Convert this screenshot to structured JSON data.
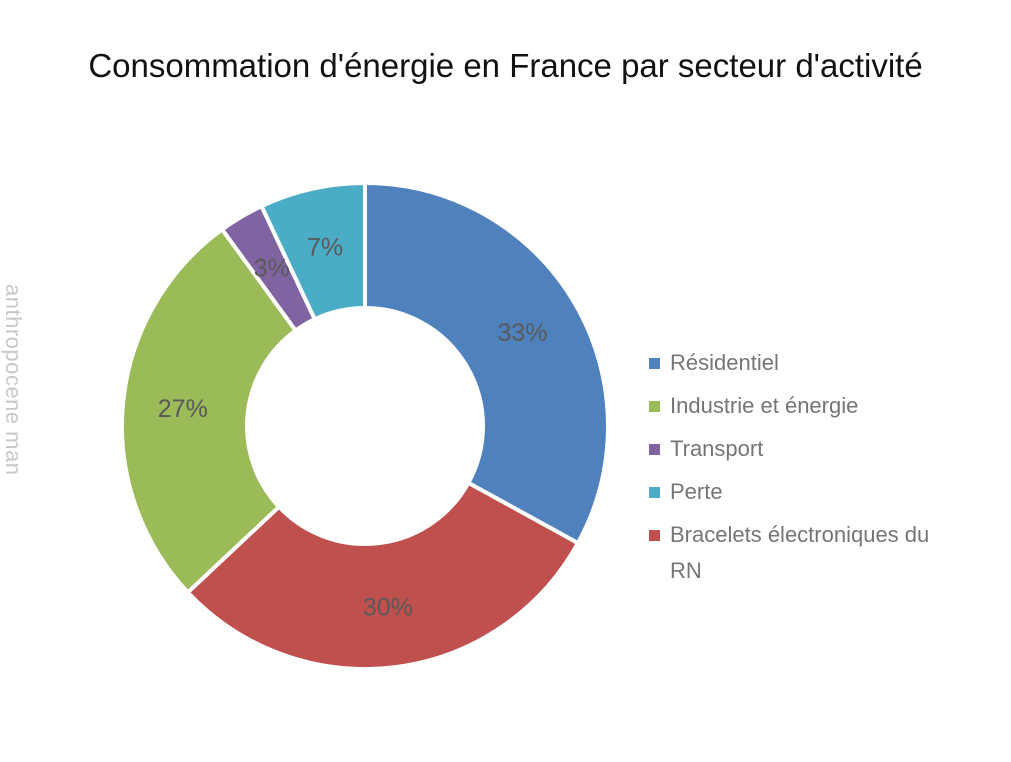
{
  "page": {
    "watermark": "anthropocene man",
    "background_color": "#ffffff"
  },
  "chart_data": {
    "type": "donut",
    "title": "Consommation d'énergie en France par secteur d'activité",
    "title_color": "#111111",
    "segments": [
      {
        "label": "Résidentiel",
        "value": 33,
        "display_label": "33%",
        "color": "#4F81BD"
      },
      {
        "label": "Bracelets électroniques du RN",
        "value": 30,
        "display_label": "30%",
        "color": "#C0504D"
      },
      {
        "label": "Industrie et énergie",
        "value": 27,
        "display_label": "27%",
        "color": "#9BBB59"
      },
      {
        "label": "Transport",
        "value": 3,
        "display_label": "3%",
        "color": "#8064A2"
      },
      {
        "label": "Perte",
        "value": 7,
        "display_label": "7%",
        "color": "#4BACC6"
      }
    ],
    "legend_order": [
      0,
      2,
      3,
      4,
      1
    ],
    "legend_position": "right",
    "start_angle_deg": 0,
    "direction": "clockwise",
    "inner_radius_ratio": 0.485,
    "separator_color": "#ffffff",
    "data_label_color": "#595959",
    "legend_text_color": "#757575",
    "watermark_color": "#c8c8c8"
  }
}
